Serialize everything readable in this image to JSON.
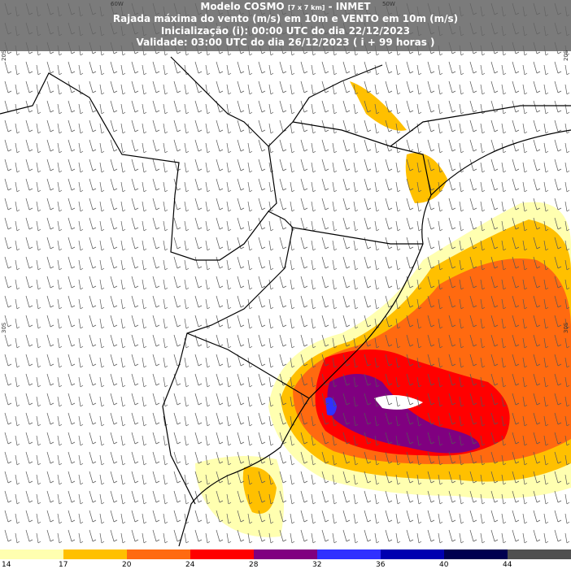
{
  "header": {
    "model": "Modelo COSMO",
    "resolution": "[7 x 7 km]",
    "source": "- INMET",
    "product": "Rajada máxima do vento (m/s) em 10m e VENTO em 10m (m/s)",
    "initialization": "Inicialização (i): 00:00 UTC do dia 22/12/2023",
    "validity": "Validade: 03:00 UTC do dia 26/12/2023 ( i + 99 horas )"
  },
  "coordinates": {
    "longitudes": [
      "60W",
      "50W"
    ],
    "latitudes": [
      "20S",
      "30S"
    ]
  },
  "colorbar": {
    "labels": [
      14,
      17,
      20,
      24,
      28,
      32,
      36,
      40,
      44
    ],
    "colors": [
      "#ffffb0",
      "#ffc000",
      "#ff6a10",
      "#ff0000",
      "#800080",
      "#3030ff",
      "#0000b0",
      "#000050",
      "#505050"
    ]
  }
}
